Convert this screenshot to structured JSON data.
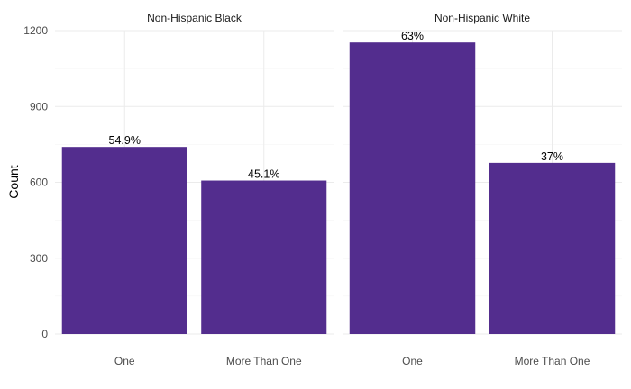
{
  "chart_data": {
    "type": "bar",
    "ylabel": "Count",
    "xlabel": "",
    "ylim": [
      0,
      1200
    ],
    "yticks": [
      0,
      300,
      600,
      900,
      1200
    ],
    "grid": true,
    "bar_color": "#532d8e",
    "panels": [
      {
        "title": "Non-Hispanic Black",
        "categories": [
          "One",
          "More Than One"
        ],
        "values": [
          740,
          607
        ],
        "labels": [
          "54.9%",
          "45.1%"
        ]
      },
      {
        "title": "Non-Hispanic White",
        "categories": [
          "One",
          "More Than One"
        ],
        "values": [
          1153,
          677
        ],
        "labels": [
          "63%",
          "37%"
        ]
      }
    ]
  }
}
